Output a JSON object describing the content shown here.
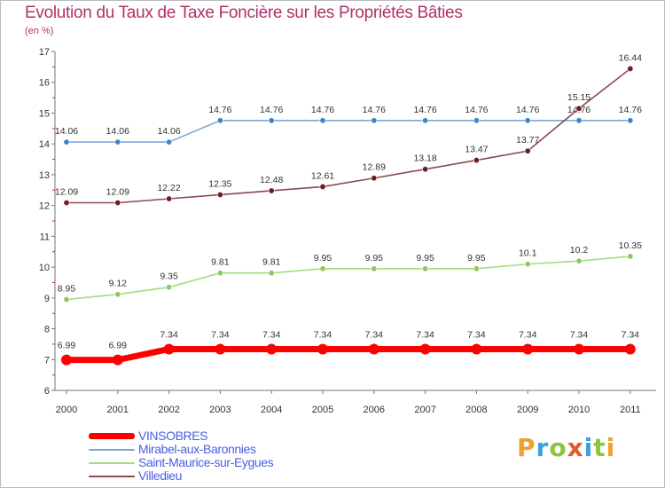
{
  "header": {
    "title": "Evolution du Taux de Taxe Foncière sur les Propriétés Bâties",
    "subtitle": "(en %)"
  },
  "logo": {
    "text": "Proxiti",
    "letters": [
      {
        "ch": "P",
        "color": "#f0a030"
      },
      {
        "ch": "r",
        "color": "#3aa0e0"
      },
      {
        "ch": "o",
        "color": "#8cc640"
      },
      {
        "ch": "x",
        "color": "#e05a2a"
      },
      {
        "ch": "i",
        "color": "#3aa0e0"
      },
      {
        "ch": "t",
        "color": "#8cc640"
      },
      {
        "ch": "i",
        "color": "#f0a030"
      }
    ]
  },
  "chart_data": {
    "type": "line",
    "title": "Evolution du Taux de Taxe Foncière sur les Propriétés Bâties",
    "ylabel": "(en %)",
    "xlabel": "",
    "x": [
      "2000",
      "2001",
      "2002",
      "2003",
      "2004",
      "2005",
      "2006",
      "2007",
      "2008",
      "2009",
      "2010",
      "2011"
    ],
    "ylim": [
      6,
      17
    ],
    "yticks": [
      "6",
      "7",
      "8",
      "9",
      "10",
      "11",
      "12",
      "13",
      "14",
      "15",
      "16",
      "17"
    ],
    "grid": false,
    "legend_position": "bottom-left",
    "series": [
      {
        "name": "VINSOBRES",
        "color": "#ff0000",
        "thick": true,
        "values": [
          6.99,
          6.99,
          7.34,
          7.34,
          7.34,
          7.34,
          7.34,
          7.34,
          7.34,
          7.34,
          7.34,
          7.34
        ],
        "labels": [
          "6.99",
          "6.99",
          "7.34",
          "7.34",
          "7.34",
          "7.34",
          "7.34",
          "7.34",
          "7.34",
          "7.34",
          "7.34",
          "7.34"
        ]
      },
      {
        "name": "Mirabel-aux-Baronnies",
        "color": "#7aa8d8",
        "marker": "#3a87c8",
        "values": [
          14.06,
          14.06,
          14.06,
          14.76,
          14.76,
          14.76,
          14.76,
          14.76,
          14.76,
          14.76,
          14.76,
          14.76
        ],
        "labels": [
          "14.06",
          "14.06",
          "14.06",
          "14.76",
          "14.76",
          "14.76",
          "14.76",
          "14.76",
          "14.76",
          "14.76",
          "14.76",
          "14.76"
        ]
      },
      {
        "name": "Saint-Maurice-sur-Eygues",
        "color": "#a6dc7a",
        "marker": "#8cc864",
        "values": [
          8.95,
          9.12,
          9.35,
          9.81,
          9.81,
          9.95,
          9.95,
          9.95,
          9.95,
          10.1,
          10.2,
          10.35
        ],
        "labels": [
          "8.95",
          "9.12",
          "9.35",
          "9.81",
          "9.81",
          "9.95",
          "9.95",
          "9.95",
          "9.95",
          "10.1",
          "10.2",
          "10.35"
        ]
      },
      {
        "name": "Villedieu",
        "color": "#8a4a4e",
        "marker": "#6a1e24",
        "values": [
          12.09,
          12.09,
          12.22,
          12.35,
          12.48,
          12.61,
          12.89,
          13.18,
          13.47,
          13.77,
          15.15,
          16.44
        ],
        "labels": [
          "12.09",
          "12.09",
          "12.22",
          "12.35",
          "12.48",
          "12.61",
          "12.89",
          "13.18",
          "13.47",
          "13.77",
          "15.15",
          "16.44"
        ]
      }
    ]
  }
}
